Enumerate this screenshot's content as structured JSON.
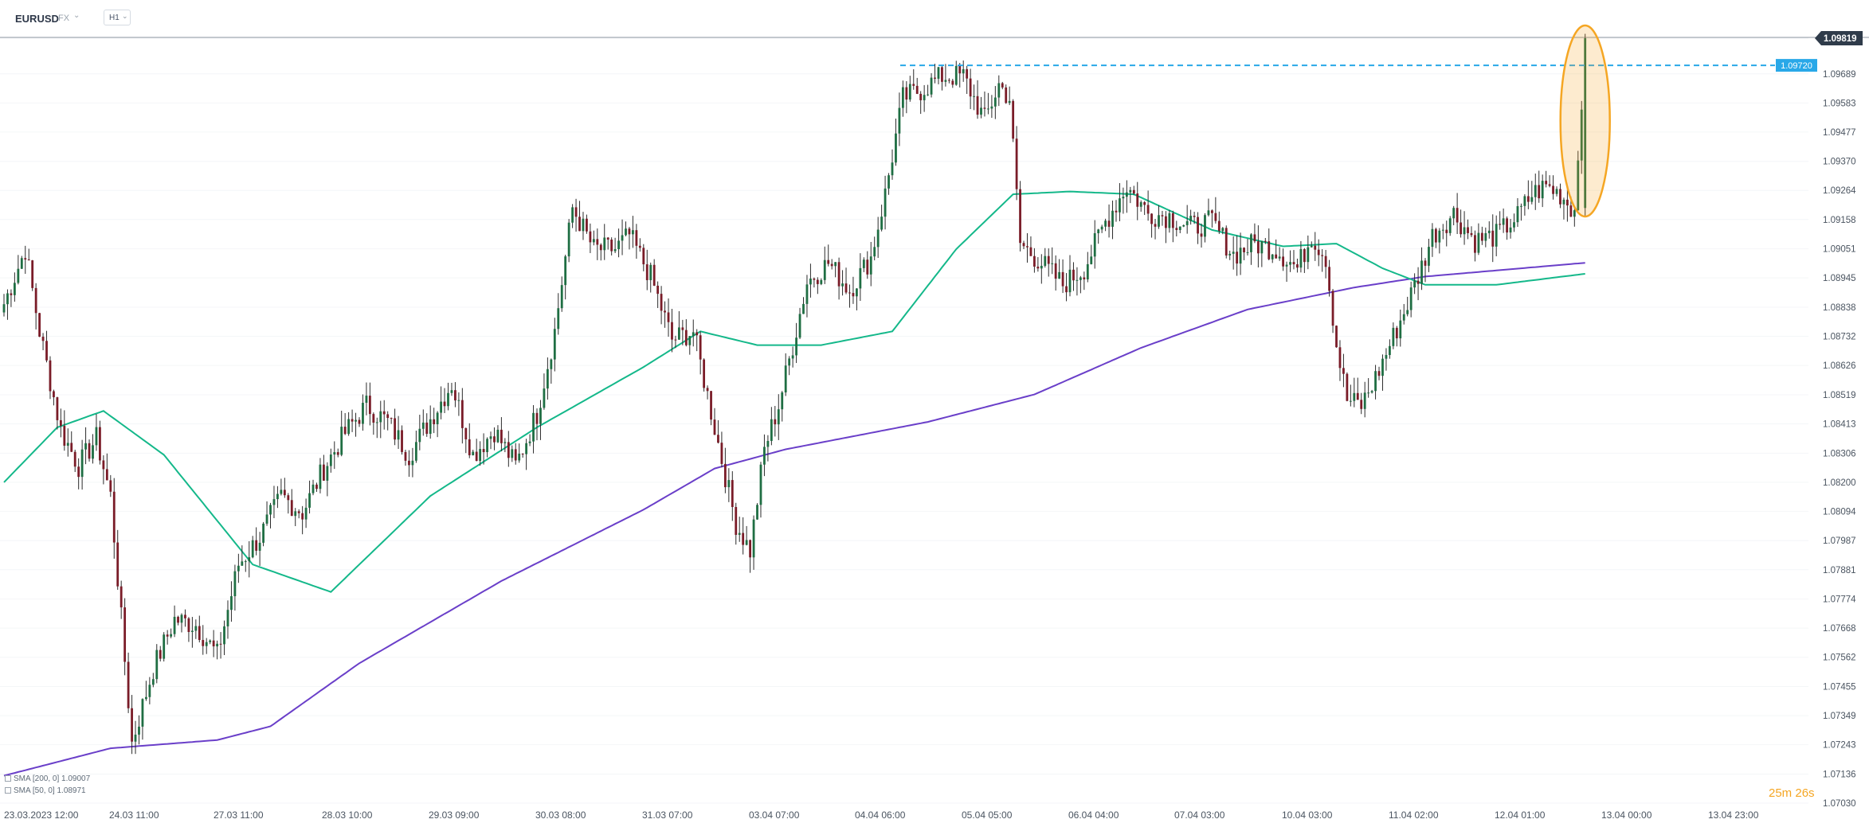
{
  "toolbar": {
    "symbol": "EURUSD",
    "asset_class": "FX",
    "timeframe": "H1"
  },
  "indicators": [
    {
      "label": "SMA [200, 0] 1.09007",
      "color": "#6a3fc9"
    },
    {
      "label": "SMA [50, 0] 1.08971",
      "color": "#14b88a"
    }
  ],
  "countdown": "25m 26s",
  "colors": {
    "up": "#1f6e43",
    "down": "#7a1c28",
    "sma200": "#6a3fc9",
    "sma50": "#14b88a",
    "level_line": "#29a8e8",
    "highlight": "#f5a623",
    "price_tag_bg": "#2f3b4a"
  },
  "chart_data": {
    "type": "candlestick",
    "symbol": "EURUSD",
    "timeframe": "H1",
    "y_range": [
      1.0703,
      1.0991
    ],
    "y_ticks": [
      "1.09819",
      "1.09689",
      "1.09583",
      "1.09477",
      "1.09370",
      "1.09264",
      "1.09158",
      "1.09051",
      "1.08945",
      "1.08838",
      "1.08732",
      "1.08626",
      "1.08519",
      "1.08413",
      "1.08306",
      "1.08200",
      "1.08094",
      "1.07987",
      "1.07881",
      "1.07774",
      "1.07668",
      "1.07562",
      "1.07455",
      "1.07349",
      "1.07243",
      "1.07136",
      "1.07030"
    ],
    "x_ticks": [
      "23.03.2023  12:00",
      "24.03  11:00",
      "27.03  11:00",
      "28.03  10:00",
      "29.03  09:00",
      "30.03  08:00",
      "31.03  07:00",
      "03.04  07:00",
      "04.04  06:00",
      "05.04  05:00",
      "06.04  04:00",
      "07.04  03:00",
      "10.04  03:00",
      "11.04  02:00",
      "12.04  01:00",
      "13.04  00:00",
      "13.04  23:00"
    ],
    "current_price": "1.09819",
    "horizontal_level": {
      "label": "1.09720",
      "value": 1.0972
    },
    "anchors": [
      [
        0,
        1.0885
      ],
      [
        6,
        1.0905
      ],
      [
        10,
        1.0875
      ],
      [
        16,
        1.0839
      ],
      [
        21,
        1.0826
      ],
      [
        26,
        1.0836
      ],
      [
        30,
        1.0815
      ],
      [
        36,
        1.0725
      ],
      [
        42,
        1.0752
      ],
      [
        48,
        1.077
      ],
      [
        54,
        1.0768
      ],
      [
        60,
        1.0757
      ],
      [
        66,
        1.079
      ],
      [
        72,
        1.08
      ],
      [
        78,
        1.0815
      ],
      [
        84,
        1.0809
      ],
      [
        90,
        1.0825
      ],
      [
        96,
        1.0838
      ],
      [
        102,
        1.0848
      ],
      [
        108,
        1.0842
      ],
      [
        114,
        1.083
      ],
      [
        120,
        1.0843
      ],
      [
        126,
        1.0856
      ],
      [
        132,
        1.083
      ],
      [
        138,
        1.0839
      ],
      [
        144,
        1.0826
      ],
      [
        150,
        1.0845
      ],
      [
        155,
        1.0875
      ],
      [
        160,
        1.092
      ],
      [
        166,
        1.0905
      ],
      [
        172,
        1.0905
      ],
      [
        176,
        1.091
      ],
      [
        182,
        1.0895
      ],
      [
        188,
        1.0872
      ],
      [
        194,
        1.0875
      ],
      [
        200,
        1.084
      ],
      [
        206,
        1.0805
      ],
      [
        210,
        1.0795
      ],
      [
        214,
        1.0832
      ],
      [
        218,
        1.0848
      ],
      [
        222,
        1.087
      ],
      [
        226,
        1.0893
      ],
      [
        232,
        1.09
      ],
      [
        238,
        1.089
      ],
      [
        244,
        1.0902
      ],
      [
        248,
        1.0925
      ],
      [
        253,
        1.096
      ],
      [
        258,
        1.0963
      ],
      [
        264,
        1.0968
      ],
      [
        270,
        1.0968
      ],
      [
        276,
        1.0952
      ],
      [
        280,
        1.0965
      ],
      [
        283,
        1.096
      ],
      [
        286,
        1.0907
      ],
      [
        292,
        1.09
      ],
      [
        298,
        1.0892
      ],
      [
        304,
        1.0898
      ],
      [
        310,
        1.0915
      ],
      [
        316,
        1.0928
      ],
      [
        322,
        1.0918
      ],
      [
        328,
        1.0917
      ],
      [
        334,
        1.0913
      ],
      [
        340,
        1.0915
      ],
      [
        346,
        1.0903
      ],
      [
        352,
        1.0907
      ],
      [
        358,
        1.0905
      ],
      [
        364,
        1.0898
      ],
      [
        368,
        1.091
      ],
      [
        372,
        1.0902
      ],
      [
        375,
        1.087
      ],
      [
        378,
        1.085
      ],
      [
        382,
        1.0848
      ],
      [
        386,
        1.0858
      ],
      [
        390,
        1.087
      ],
      [
        394,
        1.0882
      ],
      [
        398,
        1.0895
      ],
      [
        402,
        1.091
      ],
      [
        408,
        1.0918
      ],
      [
        414,
        1.0908
      ],
      [
        420,
        1.091
      ],
      [
        426,
        1.0917
      ],
      [
        430,
        1.0925
      ],
      [
        434,
        1.0928
      ],
      [
        438,
        1.0925
      ],
      [
        442,
        1.0919
      ],
      [
        445,
        1.0981
      ]
    ],
    "sma50": [
      [
        0,
        1.082
      ],
      [
        15,
        1.084
      ],
      [
        28,
        1.0846
      ],
      [
        45,
        1.083
      ],
      [
        70,
        1.079
      ],
      [
        92,
        1.078
      ],
      [
        120,
        1.0815
      ],
      [
        150,
        1.084
      ],
      [
        180,
        1.0862
      ],
      [
        196,
        1.0875
      ],
      [
        212,
        1.087
      ],
      [
        230,
        1.087
      ],
      [
        250,
        1.0875
      ],
      [
        268,
        1.0905
      ],
      [
        284,
        1.0925
      ],
      [
        300,
        1.0926
      ],
      [
        318,
        1.0925
      ],
      [
        340,
        1.0912
      ],
      [
        360,
        1.0906
      ],
      [
        375,
        1.0907
      ],
      [
        388,
        1.0898
      ],
      [
        400,
        1.0892
      ],
      [
        420,
        1.0892
      ],
      [
        445,
        1.0896
      ]
    ],
    "sma200": [
      [
        0,
        1.0713
      ],
      [
        30,
        1.0723
      ],
      [
        60,
        1.0726
      ],
      [
        75,
        1.0731
      ],
      [
        100,
        1.0754
      ],
      [
        140,
        1.0784
      ],
      [
        180,
        1.081
      ],
      [
        200,
        1.0825
      ],
      [
        220,
        1.0832
      ],
      [
        260,
        1.0842
      ],
      [
        290,
        1.0852
      ],
      [
        320,
        1.0869
      ],
      [
        350,
        1.0883
      ],
      [
        380,
        1.0891
      ],
      [
        400,
        1.0895
      ],
      [
        445,
        1.09
      ]
    ],
    "highlight_index": 445
  }
}
